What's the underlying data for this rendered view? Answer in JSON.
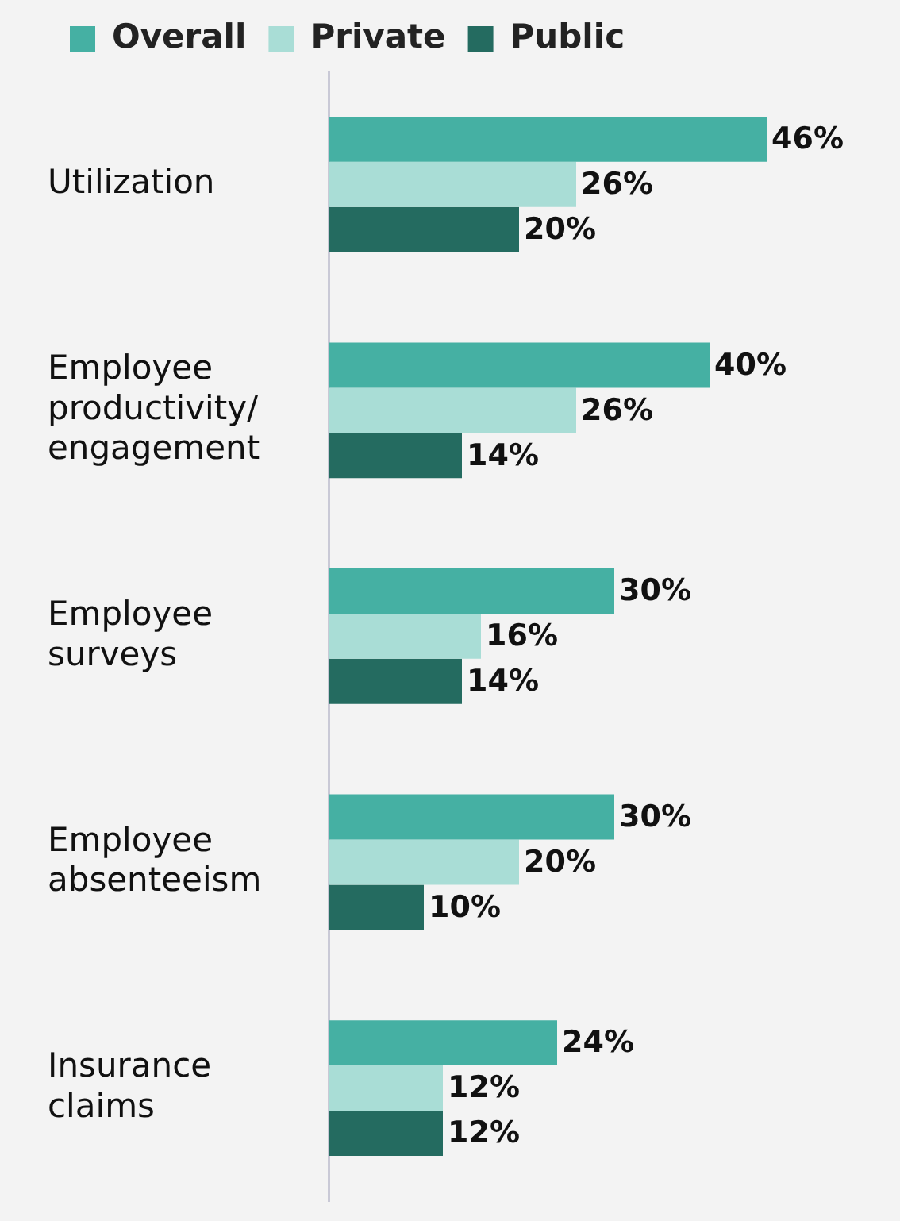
{
  "chart_data": {
    "type": "bar",
    "orientation": "horizontal",
    "categories": [
      "Utilization",
      "Employee productivity/ engagement",
      "Employee surveys",
      "Employee absenteeism",
      "Insurance claims"
    ],
    "series": [
      {
        "name": "Overall",
        "color": "#45b0a3",
        "values": [
          46,
          40,
          30,
          30,
          24
        ],
        "value_labels": [
          "46%",
          "40%",
          "30%",
          "30%",
          "24%"
        ]
      },
      {
        "name": "Private",
        "color": "#a9ddd6",
        "values": [
          26,
          26,
          16,
          20,
          12
        ],
        "value_labels": [
          "26%",
          "26%",
          "16%",
          "20%",
          "12%"
        ]
      },
      {
        "name": "Public",
        "color": "#246b60",
        "values": [
          20,
          14,
          14,
          10,
          12
        ],
        "value_labels": [
          "20%",
          "14%",
          "14%",
          "10%",
          "12%"
        ]
      }
    ],
    "tick_labels": "y",
    "grid": false,
    "legend": "top left"
  }
}
